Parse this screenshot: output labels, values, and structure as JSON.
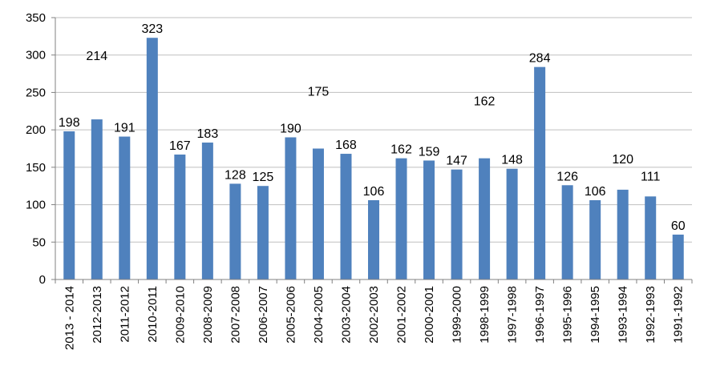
{
  "chart_data": {
    "type": "bar",
    "categories": [
      "2013 - 2014",
      "2012-2013",
      "2011-2012",
      "2010-2011",
      "2009-2010",
      "2008-2009",
      "2007-2008",
      "2006-2007",
      "2005-2006",
      "2004-2005",
      "2003-2004",
      "2002-2003",
      "2001-2002",
      "2000-2001",
      "1999-2000",
      "1998-1999",
      "1997-1998",
      "1996-1997",
      "1995-1996",
      "1994-1995",
      "1993-1994",
      "1992-1993",
      "1991-1992"
    ],
    "values": [
      198,
      214,
      191,
      323,
      167,
      183,
      128,
      125,
      190,
      175,
      168,
      106,
      162,
      159,
      147,
      162,
      148,
      284,
      126,
      106,
      120,
      111,
      60
    ],
    "data_labels": [
      "198",
      "214",
      "191",
      "323",
      "167",
      "183",
      "128",
      "125",
      "190",
      "175",
      "168",
      "106",
      "162",
      "159",
      "147",
      "162",
      "148",
      "284",
      "126",
      "106",
      "120",
      "111",
      "60"
    ],
    "ylim": [
      0,
      350
    ],
    "yticks": [
      "0",
      "50",
      "100",
      "150",
      "200",
      "250",
      "300",
      "350"
    ],
    "bar_color": "#4f81bd",
    "grid": true,
    "legend": "none",
    "title": "",
    "xlabel": "",
    "ylabel": ""
  }
}
